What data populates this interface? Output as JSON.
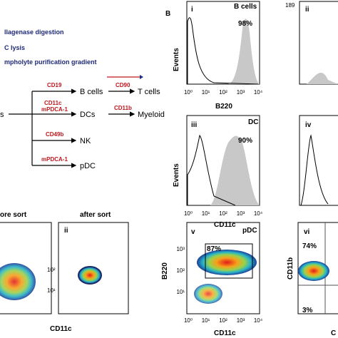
{
  "panel_a": {
    "steps": [
      "llagenase digestion",
      "C lysis",
      "mpholyte purification gradient"
    ],
    "flow": {
      "source": "s",
      "b_marker": "CD19",
      "b_cells": "B cells",
      "t_marker": "CD90",
      "t_cells": "T cells",
      "dc_marker_1": "CD11c",
      "dc_marker_2": "mPDCA-1",
      "dcs": "DCs",
      "myeloid_marker": "CD11b",
      "myeloid": "Myeloid",
      "nk_marker": "CD49b",
      "nk": "NK",
      "pdc_marker": "mPDCA-1",
      "pdc": "pDC"
    },
    "sort": {
      "before_title": "ore sort",
      "after_title": "after sort",
      "after_label": "ii",
      "x_label": "CD11c",
      "after_yticks": [
        "10²",
        "10¹"
      ]
    }
  },
  "panel_b": {
    "label": "B",
    "histograms": [
      {
        "label": "i",
        "population": "B cells",
        "percent": "98%",
        "y_label": "Events",
        "x_label": "B220",
        "xticks": [
          "10⁰",
          "10¹",
          "10²",
          "10³",
          "10⁴"
        ]
      },
      {
        "label": "ii",
        "ytick_top": "189"
      },
      {
        "label": "iii",
        "population": "DC",
        "percent": "90%",
        "y_label": "Events",
        "x_label": "CD11c",
        "xticks": [
          "10⁰",
          "10¹",
          "10²",
          "10³",
          "10⁴"
        ]
      },
      {
        "label": "iv"
      }
    ],
    "dot_plots": [
      {
        "label": "v",
        "population": "pDC",
        "percent": "87%",
        "y_label": "B220",
        "x_label": "CD11c",
        "yticks": [
          "10³",
          "10²",
          "10¹"
        ],
        "xticks": [
          "10⁰",
          "10¹",
          "10²",
          "10³",
          "10⁴"
        ]
      },
      {
        "label": "vi",
        "percent_top": "74%",
        "percent_bottom": "3%",
        "y_label": "CD11b",
        "x_label": "C"
      }
    ]
  }
}
